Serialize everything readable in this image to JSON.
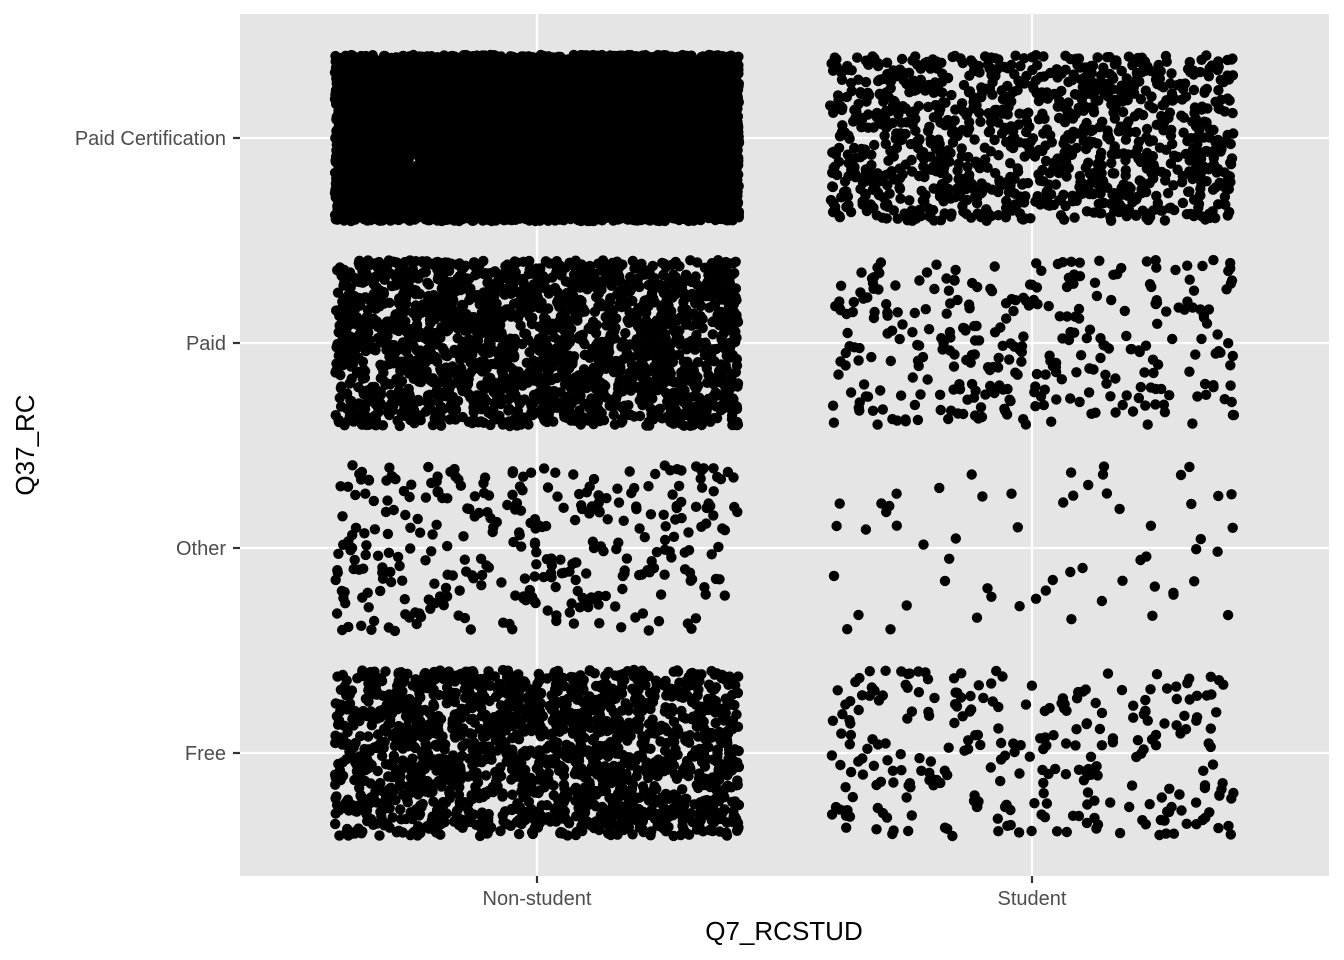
{
  "chart_data": {
    "type": "scatter",
    "jitter": true,
    "xlabel": "Q7_RCSTUD",
    "ylabel": "Q37_RC",
    "x_categories": [
      "Non-student",
      "Student"
    ],
    "y_categories": [
      "Free",
      "Other",
      "Paid",
      "Paid Certification"
    ],
    "grid": true,
    "legend": "none",
    "colors": {
      "panel": "#e5e5e5",
      "grid": "#ffffff",
      "point": "#000000",
      "tick_text": "#4d4d4d",
      "axis_title": "#000000"
    },
    "group_point_counts": [
      {
        "x": "Non-student",
        "y": "Paid Certification",
        "count": 9000
      },
      {
        "x": "Non-student",
        "y": "Paid",
        "count": 2000
      },
      {
        "x": "Non-student",
        "y": "Other",
        "count": 330
      },
      {
        "x": "Non-student",
        "y": "Free",
        "count": 1700
      },
      {
        "x": "Student",
        "y": "Paid Certification",
        "count": 1100
      },
      {
        "x": "Student",
        "y": "Paid",
        "count": 320
      },
      {
        "x": "Student",
        "y": "Other",
        "count": 60
      },
      {
        "x": "Student",
        "y": "Free",
        "count": 280
      }
    ]
  }
}
